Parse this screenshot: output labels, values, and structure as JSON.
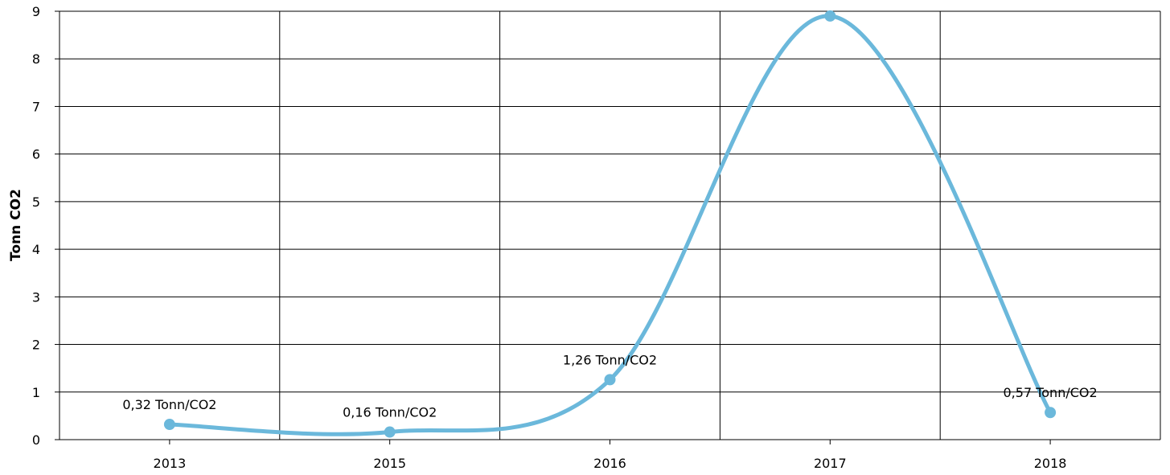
{
  "chart_data": {
    "type": "line",
    "title": "",
    "xlabel": "",
    "ylabel": "Tonn CO2",
    "categories": [
      "2013",
      "2015",
      "2016",
      "2017",
      "2018"
    ],
    "series": [
      {
        "values": [
          0.32,
          0.16,
          1.26,
          8.9,
          0.57
        ],
        "data_labels": [
          "0,32 Tonn/CO2",
          "0,16 Tonn/CO2",
          "1,26 Tonn/CO2",
          "",
          "0,57 Tonn/CO2"
        ],
        "color": "#6bb8db",
        "smooth": true
      }
    ],
    "ylim": [
      0,
      9
    ],
    "yticks": [
      "0",
      "1",
      "2",
      "3",
      "4",
      "5",
      "6",
      "7",
      "8",
      "9"
    ],
    "grid": true,
    "legend": "none"
  }
}
